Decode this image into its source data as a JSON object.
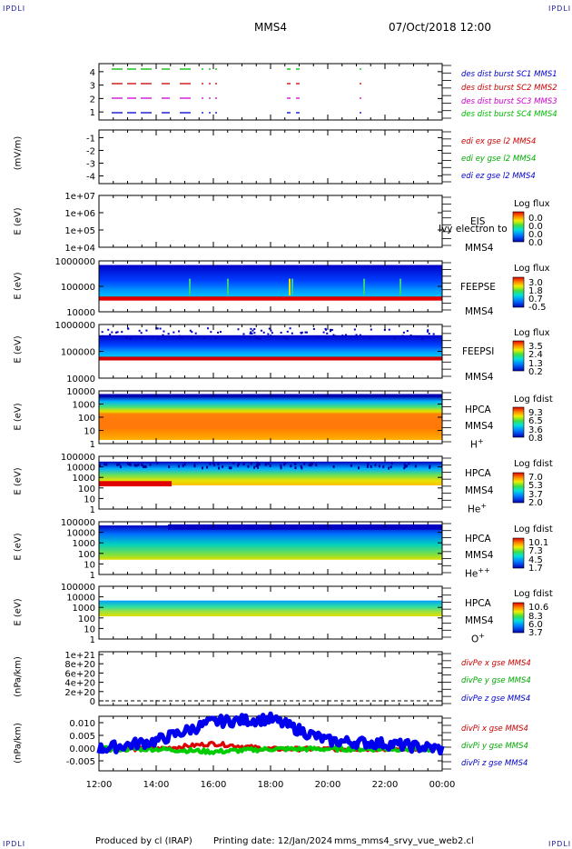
{
  "corner_label": "IPDLI",
  "header": {
    "spacecraft": "MMS4",
    "datetime": "07/Oct/2018 12:00"
  },
  "time_axis": {
    "ticks": [
      "12:00",
      "14:00",
      "16:00",
      "18:00",
      "20:00",
      "22:00",
      "00:00"
    ]
  },
  "footer": {
    "producer": "Produced by cl (IRAP)",
    "printing": "Printing date: 12/Jan/2024",
    "script": "mms_mms4_srvy_vue_web2.cl"
  },
  "panels": {
    "burst": {
      "ticks": [
        "4",
        "3",
        "2",
        "1"
      ],
      "legend": [
        {
          "text": "des dist burst SC1 MMS1",
          "color": "#0000cc"
        },
        {
          "text": "des dist burst SC2 MMS2",
          "color": "#cc0000"
        },
        {
          "text": "des dist burst SC3 MMS3",
          "color": "#cc00cc"
        },
        {
          "text": "des dist burst SC4 MMS4",
          "color": "#00bb00"
        }
      ]
    },
    "edi": {
      "ylabel": "(mV/m)",
      "ticks": [
        "-1",
        "-2",
        "-3",
        "-4"
      ],
      "legend": [
        {
          "text": "edi ex gse l2 MMS4",
          "color": "#cc0000"
        },
        {
          "text": "edi ey gse l2 MMS4",
          "color": "#00aa00"
        },
        {
          "text": "edi ez gse l2 MMS4",
          "color": "#0000cc"
        }
      ]
    },
    "eis": {
      "ylabel": "E (eV)",
      "ticks": [
        "1e+07",
        "1e+06",
        "1e+05",
        "1e+04"
      ],
      "instrument": "EIS",
      "overlay": "Ivy electron to",
      "sc": "MMS4",
      "scale_title": "Log flux",
      "scale": [
        "0.0",
        "0.0",
        "0.0",
        "0.0"
      ]
    },
    "feepse": {
      "ylabel": "E (eV)",
      "ticks": [
        "1000000",
        "100000",
        "10000"
      ],
      "instrument": "FEEPSE",
      "sc": "MMS4",
      "scale_title": "Log flux",
      "scale": [
        "3.0",
        "1.8",
        "0.7",
        "-0.5"
      ]
    },
    "feepsi": {
      "ylabel": "E (eV)",
      "ticks": [
        "1000000",
        "100000",
        "10000"
      ],
      "instrument": "FEEPSI",
      "sc": "MMS4",
      "scale_title": "Log flux",
      "scale": [
        "3.5",
        "2.4",
        "1.3",
        "0.2"
      ]
    },
    "hpca_h": {
      "ylabel": "E (eV)",
      "ticks": [
        "10000",
        "1000",
        "100",
        "10",
        "1"
      ],
      "instrument": "HPCA",
      "sc": "MMS4",
      "species": "H",
      "charge": "+",
      "scale_title": "Log fdist",
      "scale": [
        "9.3",
        "6.5",
        "3.6",
        "0.8"
      ]
    },
    "hpca_he1": {
      "ylabel": "E (eV)",
      "ticks": [
        "100000",
        "10000",
        "1000",
        "100",
        "10",
        "1"
      ],
      "instrument": "HPCA",
      "sc": "MMS4",
      "species": "He",
      "charge": "+",
      "scale_title": "Log fdist",
      "scale": [
        "7.0",
        "5.3",
        "3.7",
        "2.0"
      ]
    },
    "hpca_he2": {
      "ylabel": "E (eV)",
      "ticks": [
        "100000",
        "10000",
        "1000",
        "100",
        "10",
        "1"
      ],
      "instrument": "HPCA",
      "sc": "MMS4",
      "species": "He",
      "charge": "++",
      "scale_title": "Log fdist",
      "scale": [
        "10.1",
        "7.3",
        "4.5",
        "1.7"
      ]
    },
    "hpca_o": {
      "ylabel": "E (eV)",
      "ticks": [
        "100000",
        "10000",
        "1000",
        "100",
        "10",
        "1"
      ],
      "instrument": "HPCA",
      "sc": "MMS4",
      "species": "O",
      "charge": "+",
      "scale_title": "Log fdist",
      "scale": [
        "10.6",
        "8.3",
        "6.0",
        "3.7"
      ]
    },
    "divpe": {
      "ylabel": "(nPa/km)",
      "ticks": [
        "1e+21",
        "8e+20",
        "6e+20",
        "4e+20",
        "2e+20",
        "0"
      ],
      "legend": [
        {
          "text": "divPe x gse MMS4",
          "color": "#cc0000"
        },
        {
          "text": "divPe y gse MMS4",
          "color": "#00aa00"
        },
        {
          "text": "divPe z gse MMS4",
          "color": "#0000cc"
        }
      ]
    },
    "divpi": {
      "ylabel": "(nPa/km)",
      "ticks": [
        "0.010",
        "0.005",
        "0.000",
        "-0.005"
      ],
      "legend": [
        {
          "text": "divPi x gse MMS4",
          "color": "#cc0000"
        },
        {
          "text": "divPi y gse MMS4",
          "color": "#00aa00"
        },
        {
          "text": "divPi z gse MMS4",
          "color": "#0000cc"
        }
      ]
    }
  },
  "chart_data": {
    "type": "line",
    "title": "MMS4",
    "subtitle": "07/Oct/2018 12:00",
    "x": [
      "12:00",
      "14:00",
      "16:00",
      "18:00",
      "20:00",
      "22:00",
      "00:00"
    ],
    "series": [
      {
        "name": "divPi x gse MMS4",
        "values": [
          0.0,
          0.0,
          0.002,
          0.0,
          0.0,
          0.0,
          0.0
        ]
      },
      {
        "name": "divPi y gse MMS4",
        "values": [
          0.0,
          0.0,
          -0.001,
          0.0,
          0.0,
          0.0,
          0.0
        ]
      },
      {
        "name": "divPi z gse MMS4",
        "values": [
          0.0,
          0.003,
          0.01,
          0.011,
          0.003,
          0.002,
          0.0
        ]
      }
    ],
    "ylim": [
      -0.008,
      0.012
    ]
  }
}
